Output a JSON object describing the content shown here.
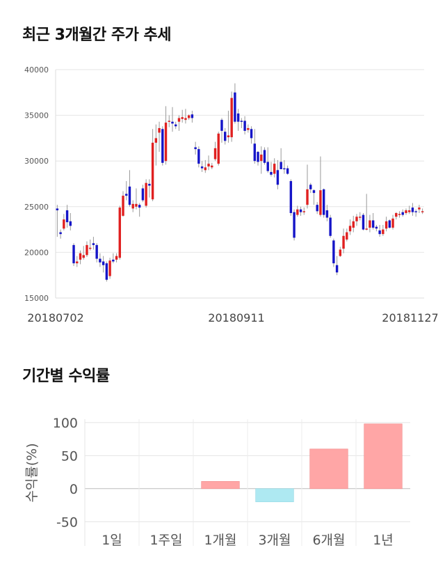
{
  "section1": {
    "title": "최근 3개월간 주가 추세"
  },
  "section2": {
    "title": "기간별 수익률"
  },
  "chart_data": [
    {
      "type": "candlestick",
      "yticks": [
        "40000",
        "35000",
        "30000",
        "25000",
        "20000",
        "15000"
      ],
      "ylim": [
        15000,
        40000
      ],
      "xticks": [
        "20180702",
        "20180911",
        "20181127"
      ],
      "colors": {
        "up": "#e02020",
        "down": "#1515c8"
      },
      "candles": [
        [
          24800,
          24600,
          25200,
          21700
        ],
        [
          22200,
          22000,
          22500,
          21500
        ],
        [
          22600,
          23600,
          24200,
          22400
        ],
        [
          24600,
          23300,
          25200,
          22700
        ],
        [
          23400,
          22900,
          24300,
          22400
        ],
        [
          20800,
          18800,
          21000,
          18500
        ],
        [
          18800,
          19000,
          19600,
          18400
        ],
        [
          19200,
          19900,
          20200,
          18700
        ],
        [
          19400,
          19700,
          20700,
          19200
        ],
        [
          19700,
          20800,
          21200,
          19500
        ],
        [
          20500,
          20500,
          21400,
          20200
        ],
        [
          21000,
          20800,
          21700,
          20300
        ],
        [
          20800,
          19300,
          21000,
          18900
        ],
        [
          19300,
          18900,
          19900,
          18400
        ],
        [
          19000,
          18600,
          19600,
          17800
        ],
        [
          18800,
          17000,
          19000,
          16800
        ],
        [
          17400,
          19100,
          19400,
          17100
        ],
        [
          19200,
          19000,
          19900,
          18800
        ],
        [
          19200,
          19600,
          19900,
          18900
        ],
        [
          19400,
          24900,
          25100,
          19200
        ],
        [
          24000,
          26200,
          26700,
          23900
        ],
        [
          26400,
          26200,
          27800,
          25700
        ],
        [
          27200,
          25200,
          29000,
          25000
        ],
        [
          24800,
          25300,
          25700,
          24400
        ],
        [
          25000,
          25300,
          27000,
          24700
        ],
        [
          25200,
          24900,
          25400,
          23900
        ],
        [
          27000,
          25700,
          27400,
          25500
        ],
        [
          25100,
          27600,
          28000,
          24900
        ],
        [
          27500,
          27300,
          28000,
          26000
        ],
        [
          25800,
          32000,
          33500,
          25600
        ],
        [
          32000,
          32500,
          34000,
          29500
        ],
        [
          33100,
          33600,
          34300,
          31000
        ],
        [
          33500,
          29800,
          33800,
          29500
        ],
        [
          30000,
          34200,
          36000,
          29600
        ],
        [
          34300,
          34400,
          35000,
          33700
        ],
        [
          34300,
          34100,
          35900,
          33200
        ],
        [
          34000,
          33800,
          34300,
          33500
        ],
        [
          34300,
          34700,
          35000,
          33300
        ],
        [
          34600,
          34800,
          35600,
          34200
        ],
        [
          34500,
          34700,
          35700,
          34100
        ],
        [
          34700,
          35000,
          35100,
          34500
        ],
        [
          35100,
          34700,
          35500,
          34200
        ],
        [
          31500,
          31300,
          32100,
          30700
        ],
        [
          31300,
          29700,
          31600,
          29300
        ],
        [
          29400,
          29200,
          30000,
          28800
        ],
        [
          29000,
          29300,
          30100,
          28700
        ],
        [
          29400,
          29700,
          30600,
          29000
        ],
        [
          29300,
          29500,
          29800,
          29100
        ],
        [
          30200,
          31400,
          32100,
          30000
        ],
        [
          29700,
          33000,
          33200,
          29500
        ],
        [
          34500,
          33300,
          34700,
          32000
        ],
        [
          33200,
          32200,
          33600,
          31800
        ],
        [
          32600,
          32800,
          35500,
          32000
        ],
        [
          32600,
          36900,
          37600,
          32100
        ],
        [
          37500,
          34300,
          38500,
          34100
        ],
        [
          35200,
          34300,
          35700,
          33300
        ],
        [
          34400,
          34300,
          34700,
          33600
        ],
        [
          34400,
          33300,
          34900,
          32900
        ],
        [
          33400,
          33600,
          34000,
          33100
        ],
        [
          33500,
          32500,
          33800,
          31900
        ],
        [
          31900,
          30000,
          33500,
          29700
        ],
        [
          31000,
          29900,
          31100,
          29500
        ],
        [
          30000,
          30700,
          31600,
          28600
        ],
        [
          31200,
          29800,
          31500,
          29600
        ],
        [
          29900,
          28900,
          31500,
          28700
        ],
        [
          28800,
          28500,
          29900,
          28300
        ],
        [
          28600,
          29700,
          30300,
          28200
        ],
        [
          29000,
          27400,
          30100,
          26900
        ],
        [
          29900,
          29100,
          31400,
          29300
        ],
        [
          29200,
          29100,
          30100,
          28600
        ],
        [
          29200,
          28600,
          29500,
          28500
        ],
        [
          27800,
          24300,
          28000,
          24000
        ],
        [
          24400,
          21600,
          24700,
          21300
        ],
        [
          24100,
          24700,
          25100,
          23900
        ],
        [
          24700,
          24400,
          25000,
          24000
        ],
        [
          24400,
          24500,
          24900,
          24100
        ],
        [
          25200,
          26900,
          29600,
          24800
        ],
        [
          27400,
          26900,
          27600,
          26500
        ],
        [
          26800,
          26500,
          26900,
          25200
        ],
        [
          25200,
          24500,
          25500,
          24200
        ],
        [
          24100,
          26800,
          30500,
          23900
        ],
        [
          26900,
          24100,
          27000,
          23800
        ],
        [
          24600,
          23800,
          25200,
          23400
        ],
        [
          23800,
          21800,
          24100,
          21600
        ],
        [
          21300,
          18800,
          21500,
          18400
        ],
        [
          18600,
          17800,
          19600,
          17500
        ],
        [
          19600,
          20300,
          20600,
          19500
        ],
        [
          20400,
          21800,
          22600,
          19900
        ],
        [
          21400,
          22200,
          22600,
          21200
        ],
        [
          22300,
          22900,
          23600,
          21900
        ],
        [
          22700,
          23400,
          24000,
          22200
        ],
        [
          23400,
          23900,
          24200,
          22900
        ],
        [
          23800,
          23900,
          24400,
          23500
        ],
        [
          24100,
          22500,
          24300,
          22400
        ],
        [
          22500,
          22600,
          26400,
          22400
        ],
        [
          22700,
          23500,
          24100,
          22200
        ],
        [
          23500,
          22700,
          24300,
          22500
        ],
        [
          22800,
          22600,
          23000,
          22300
        ],
        [
          22400,
          22000,
          23000,
          21700
        ],
        [
          22000,
          22500,
          23000,
          21800
        ],
        [
          22600,
          23400,
          23900,
          22300
        ],
        [
          23500,
          22700,
          23600,
          22600
        ],
        [
          22700,
          23700,
          24100,
          22500
        ],
        [
          23900,
          24300,
          24400,
          23600
        ],
        [
          24200,
          24200,
          24500,
          23800
        ],
        [
          24400,
          24100,
          24700,
          23900
        ],
        [
          24300,
          24600,
          24800,
          24100
        ],
        [
          24400,
          24600,
          25100,
          24200
        ],
        [
          24900,
          24400,
          25400,
          24000
        ],
        [
          24500,
          24400,
          24700,
          23900
        ],
        [
          24700,
          24900,
          25200,
          24300
        ],
        [
          24500,
          24500,
          24800,
          24200
        ]
      ]
    },
    {
      "type": "bar",
      "ylabel": "수익률(%)",
      "ylim": [
        -55,
        103
      ],
      "yticks": [
        "100",
        "50",
        "0",
        "-50"
      ],
      "categories": [
        "1일",
        "1주일",
        "1개월",
        "3개월",
        "6개월",
        "1년"
      ],
      "values": [
        0,
        0,
        11,
        -20,
        60,
        98
      ],
      "colors": {
        "positive": "#ffa6a6",
        "negative": "#aee9f2"
      }
    }
  ]
}
